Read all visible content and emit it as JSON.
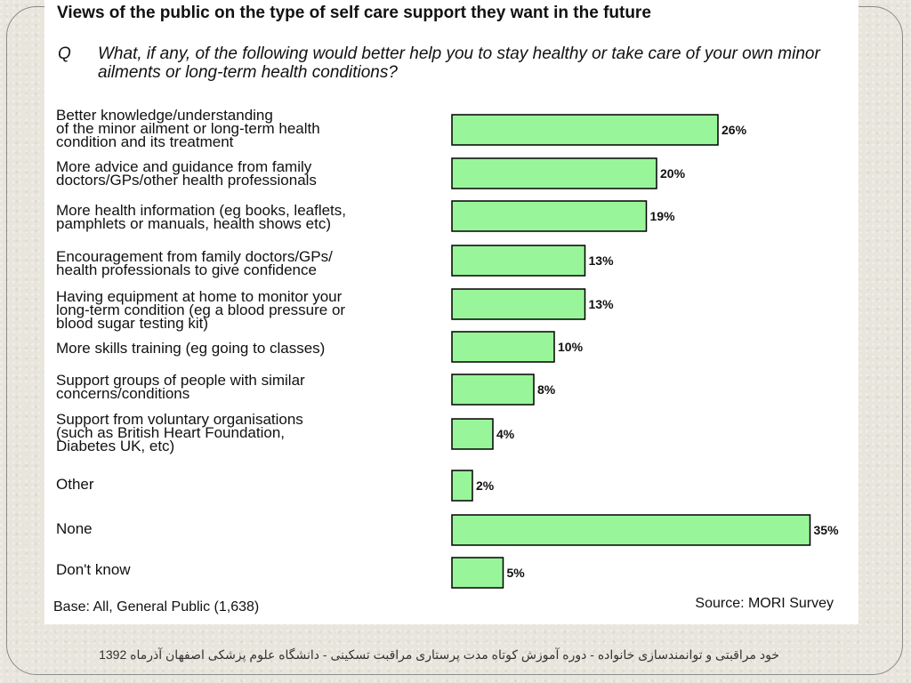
{
  "chart_data": {
    "type": "bar",
    "orientation": "horizontal",
    "title": "Views of the public on the type of self care support they want in the future",
    "question_marker": "Q",
    "question": "What, if any, of the following would better help you to stay healthy or take care of your own minor ailments or long-term health conditions?",
    "categories": [
      "Better knowledge/understanding\nof the minor ailment or long-term health\ncondition and its treatment",
      "More advice and guidance from family\ndoctors/GPs/other health professionals",
      "More health information (eg books, leaflets,\npamphlets or manuals, health shows etc)",
      "Encouragement from family doctors/GPs/\nhealth professionals to give confidence",
      "Having equipment at home to monitor your\nlong-term condition (eg a blood pressure or\nblood sugar testing kit)",
      "More skills training (eg going to classes)",
      "Support groups of people with similar\nconcerns/conditions",
      "Support from voluntary organisations\n(such as British Heart Foundation,\nDiabetes UK, etc)",
      "Other",
      "None",
      "Don't know"
    ],
    "values": [
      26,
      20,
      19,
      13,
      13,
      10,
      8,
      4,
      2,
      35,
      5
    ],
    "value_labels": [
      "26%",
      "20%",
      "19%",
      "13%",
      "13%",
      "10%",
      "8%",
      "4%",
      "2%",
      "35%",
      "5%"
    ],
    "bar_color": "#99f599",
    "bar_border": "#000000",
    "base": "Base: All, General Public (1,638)",
    "source": "Source: MORI Survey"
  },
  "slide_footer": "خود مراقبتی و توانمندسازی خانواده - دوره آموزش کوتاه مدت پرستاری مراقبت تسکینی - دانشگاه علوم پزشکی اصفهان آذرماه 1392"
}
